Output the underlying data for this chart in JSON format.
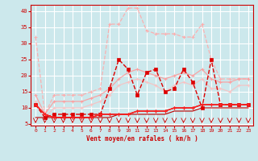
{
  "xlabel": "Vent moyen/en rafales ( km/h )",
  "background_color": "#cce8ec",
  "grid_color": "#b0d8dc",
  "xlim": [
    -0.5,
    23.5
  ],
  "ylim": [
    4.5,
    42
  ],
  "yticks": [
    5,
    10,
    15,
    20,
    25,
    30,
    35,
    40
  ],
  "xticks": [
    0,
    1,
    2,
    3,
    4,
    5,
    6,
    7,
    8,
    9,
    10,
    11,
    12,
    13,
    14,
    15,
    16,
    17,
    18,
    19,
    20,
    21,
    22,
    23
  ],
  "x": [
    0,
    1,
    2,
    3,
    4,
    5,
    6,
    7,
    8,
    9,
    10,
    11,
    12,
    13,
    14,
    15,
    16,
    17,
    18,
    19,
    20,
    21,
    22,
    23
  ],
  "line1_y": [
    32,
    8,
    14,
    14,
    14,
    14,
    15,
    16,
    36,
    36,
    41,
    41,
    34,
    33,
    33,
    33,
    32,
    32,
    36,
    25,
    19,
    19,
    19,
    19
  ],
  "line2_y": [
    14,
    8,
    12,
    12,
    12,
    12,
    13,
    14,
    16,
    19,
    21,
    22,
    21,
    20,
    19,
    20,
    21,
    20,
    22,
    19,
    18,
    18,
    19,
    19
  ],
  "line3_y": [
    12,
    7,
    10,
    10,
    10,
    10,
    11,
    12,
    14,
    17,
    18,
    19,
    18,
    17,
    15,
    17,
    18,
    17,
    19,
    16,
    16,
    15,
    17,
    17
  ],
  "line4_y": [
    11,
    7,
    8,
    8,
    8,
    8,
    8,
    8,
    16,
    25,
    22,
    14,
    21,
    22,
    15,
    16,
    22,
    18,
    10,
    25,
    11,
    11,
    11,
    11
  ],
  "line5_y": [
    11,
    8,
    7,
    7,
    7,
    7,
    7,
    8,
    8,
    8,
    8,
    9,
    9,
    9,
    9,
    10,
    10,
    10,
    11,
    11,
    11,
    11,
    11,
    11
  ],
  "line6_y": [
    11,
    8,
    7,
    7,
    7,
    7,
    7,
    8,
    8,
    8,
    8,
    9,
    9,
    9,
    9,
    10,
    10,
    10,
    11,
    11,
    11,
    11,
    11,
    11
  ],
  "line7_y": [
    7,
    7,
    7,
    7,
    7,
    7,
    7,
    7,
    7,
    8,
    8,
    8,
    8,
    8,
    8,
    9,
    9,
    9,
    10,
    10,
    10,
    10,
    10,
    10
  ]
}
